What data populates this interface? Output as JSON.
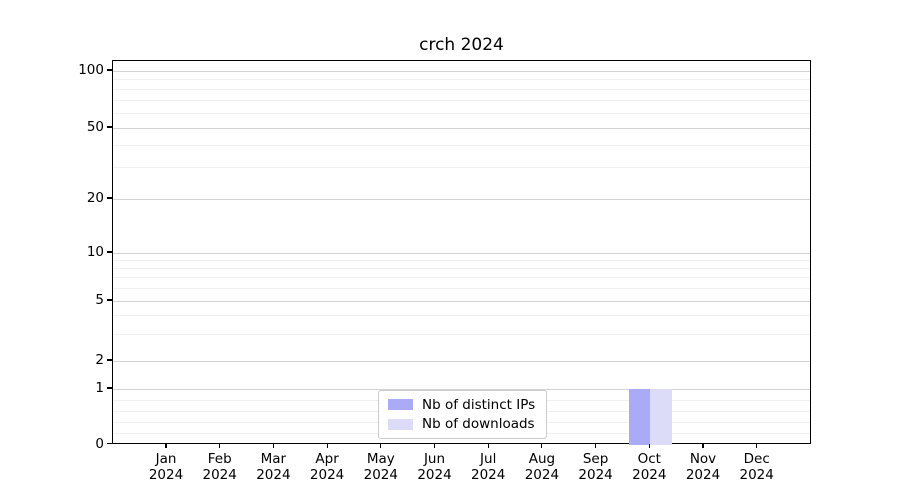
{
  "figure": {
    "title": "crch 2024"
  },
  "chart_data": {
    "type": "bar",
    "title": "crch 2024",
    "categories": [
      "Jan 2024",
      "Feb 2024",
      "Mar 2024",
      "Apr 2024",
      "May 2024",
      "Jun 2024",
      "Jul 2024",
      "Aug 2024",
      "Sep 2024",
      "Oct 2024",
      "Nov 2024",
      "Dec 2024"
    ],
    "x_axis": {
      "months": [
        "Jan",
        "Feb",
        "Mar",
        "Apr",
        "May",
        "Jun",
        "Jul",
        "Aug",
        "Sep",
        "Oct",
        "Nov",
        "Dec"
      ],
      "year": "2024"
    },
    "y_axis": {
      "scale": "symlog",
      "major_ticks": [
        0,
        1,
        2,
        5,
        10,
        20,
        50,
        100
      ],
      "minor_ticks": [
        0.2,
        0.4,
        0.6,
        0.8,
        3,
        4,
        6,
        7,
        8,
        9,
        30,
        40,
        60,
        70,
        80,
        90
      ],
      "ylim": [
        0,
        120
      ]
    },
    "series": [
      {
        "name": "Nb of distinct IPs",
        "color": "#aaaaf6",
        "values": [
          0,
          0,
          0,
          0,
          0,
          0,
          0,
          0,
          0,
          1,
          0,
          0
        ]
      },
      {
        "name": "Nb of downloads",
        "color": "#dcdcf8",
        "values": [
          0,
          0,
          0,
          0,
          0,
          0,
          0,
          0,
          0,
          1,
          0,
          0
        ]
      }
    ],
    "grid": true,
    "legend": {
      "items": [
        "Nb of distinct IPs",
        "Nb of downloads"
      ],
      "position": "lower center"
    }
  },
  "colors": {
    "major_grid": "#d2d2d2",
    "minor_grid": "#f0f0f0",
    "spine": "#000000",
    "text": "#000000"
  }
}
